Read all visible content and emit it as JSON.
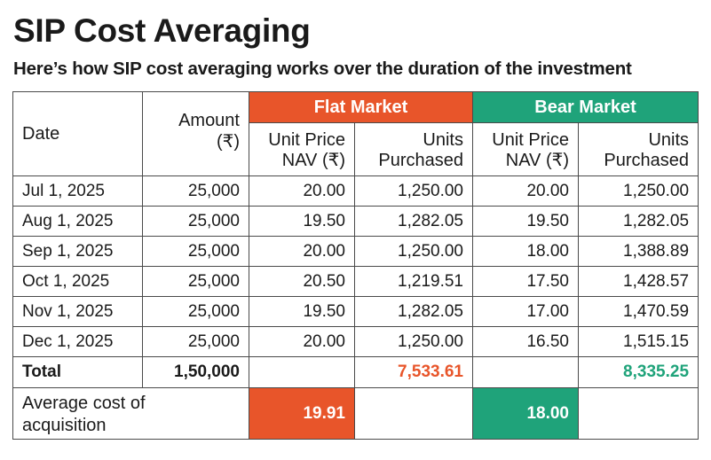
{
  "title": "SIP Cost Averaging",
  "subtitle": "Here’s how SIP cost averaging works over the duration of the investment",
  "colors": {
    "flat": "#e8552a",
    "bear": "#1fa37a"
  },
  "headers": {
    "date": "Date",
    "amount_line1": "Amount",
    "amount_line2": "(₹)",
    "flat_group": "Flat Market",
    "bear_group": "Bear Market",
    "unit_price_line1": "Unit Price",
    "unit_price_line2": "NAV (₹)",
    "units_line1": "Units",
    "units_line2": "Purchased"
  },
  "rows": [
    {
      "date": "Jul 1, 2025",
      "amount": "25,000",
      "flat_nav": "20.00",
      "flat_units": "1,250.00",
      "bear_nav": "20.00",
      "bear_units": "1,250.00"
    },
    {
      "date": "Aug 1, 2025",
      "amount": "25,000",
      "flat_nav": "19.50",
      "flat_units": "1,282.05",
      "bear_nav": "19.50",
      "bear_units": "1,282.05"
    },
    {
      "date": "Sep 1, 2025",
      "amount": "25,000",
      "flat_nav": "20.00",
      "flat_units": "1,250.00",
      "bear_nav": "18.00",
      "bear_units": "1,388.89"
    },
    {
      "date": "Oct 1, 2025",
      "amount": "25,000",
      "flat_nav": "20.50",
      "flat_units": "1,219.51",
      "bear_nav": "17.50",
      "bear_units": "1,428.57"
    },
    {
      "date": "Nov 1, 2025",
      "amount": "25,000",
      "flat_nav": "19.50",
      "flat_units": "1,282.05",
      "bear_nav": "17.00",
      "bear_units": "1,470.59"
    },
    {
      "date": "Dec 1, 2025",
      "amount": "25,000",
      "flat_nav": "20.00",
      "flat_units": "1,250.00",
      "bear_nav": "16.50",
      "bear_units": "1,515.15"
    }
  ],
  "total": {
    "label": "Total",
    "amount": "1,50,000",
    "flat_units": "7,533.61",
    "bear_units": "8,335.25"
  },
  "average": {
    "label_line1": "Average cost of",
    "label_line2": "acquisition",
    "flat_value": "19.91",
    "bear_value": "18.00"
  }
}
